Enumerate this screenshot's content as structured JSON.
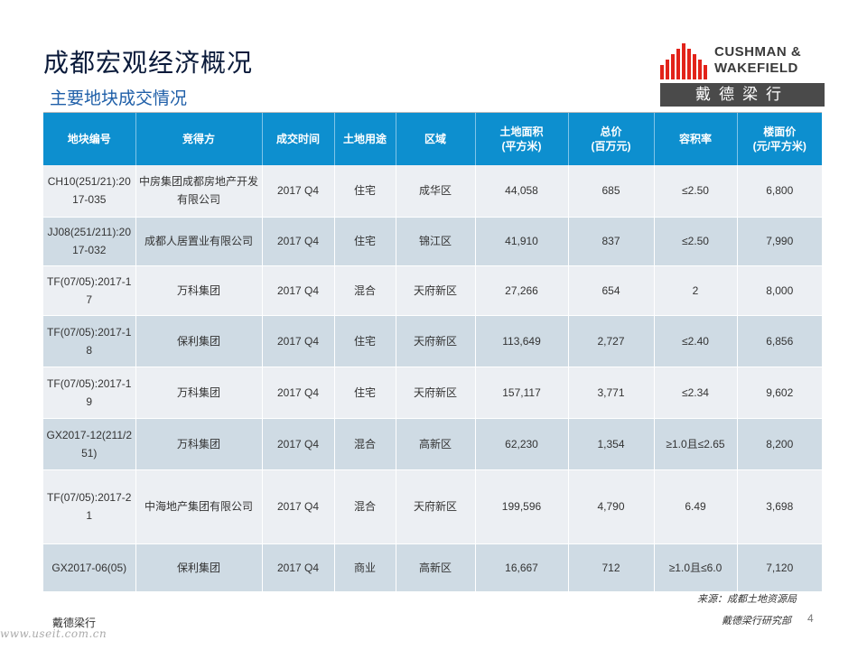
{
  "title": "成都宏观经济概况",
  "subtitle": "主要地块成交情况",
  "logo": {
    "line1": "CUSHMAN &",
    "line2": "WAKEFIELD",
    "cn": "戴德梁行",
    "bar_color": "#e2231a"
  },
  "table": {
    "headers": [
      [
        "地块编号"
      ],
      [
        "竞得方"
      ],
      [
        "成交时间"
      ],
      [
        "土地用途"
      ],
      [
        "区域"
      ],
      [
        "土地面积",
        "(平方米)"
      ],
      [
        "总价",
        "(百万元)"
      ],
      [
        "容积率"
      ],
      [
        "楼面价",
        "(元/平方米)"
      ]
    ],
    "rows": [
      [
        "CH10(251/21):2017-035",
        "中房集团成都房地产开发有限公司",
        "2017 Q4",
        "住宅",
        "成华区",
        "44,058",
        "685",
        "≤2.50",
        "6,800"
      ],
      [
        "JJ08(251/211):2017-032",
        "成都人居置业有限公司",
        "2017 Q4",
        "住宅",
        "锦江区",
        "41,910",
        "837",
        "≤2.50",
        "7,990"
      ],
      [
        "TF(07/05):2017-17",
        "万科集团",
        "2017 Q4",
        "混合",
        "天府新区",
        "27,266",
        "654",
        "2",
        "8,000"
      ],
      [
        "TF(07/05):2017-18",
        "保利集团",
        "2017 Q4",
        "住宅",
        "天府新区",
        "113,649",
        "2,727",
        "≤2.40",
        "6,856"
      ],
      [
        "TF(07/05):2017-19",
        "万科集团",
        "2017 Q4",
        "住宅",
        "天府新区",
        "157,117",
        "3,771",
        "≤2.34",
        "9,602"
      ],
      [
        "GX2017-12(211/251)",
        "万科集团",
        "2017 Q4",
        "混合",
        "高新区",
        "62,230",
        "1,354",
        "≥1.0且≤2.65",
        "8,200"
      ],
      [
        "TF(07/05):2017-21",
        "中海地产集团有限公司",
        "2017 Q4",
        "混合",
        "天府新区",
        "199,596",
        "4,790",
        "6.49",
        "3,698"
      ],
      [
        "GX2017-06(05)",
        "保利集团",
        "2017 Q4",
        "商业",
        "高新区",
        "16,667",
        "712",
        "≥1.0且≤6.0",
        "7,120"
      ]
    ]
  },
  "footer": {
    "source": "来源：成都土地资源局",
    "dept": "戴德梁行研究部",
    "page": "4",
    "brand": "戴德梁行",
    "watermark": "www.useit.com.cn"
  },
  "colors": {
    "header_bg": "#0d8fcf",
    "row_light": "#eceff3",
    "row_dark": "#cfdbe4",
    "title": "#0a1a3a",
    "subtitle": "#1f5fa8"
  }
}
